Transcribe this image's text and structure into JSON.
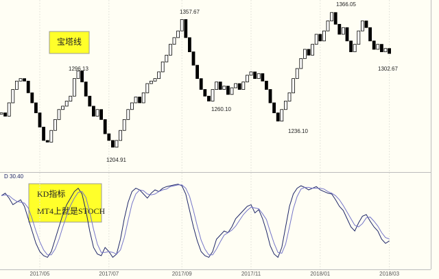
{
  "chart_data": [
    {
      "type": "tower",
      "callouts": [
        "宝塔线",
        "KD指标",
        "MT4上就是STOCH"
      ],
      "annotations": [
        "1296.13",
        "1357.67",
        "1204.91",
        "1260.10",
        "1236.10",
        "1366.05",
        "1302.67"
      ],
      "categories": [
        null,
        null,
        null,
        null,
        null,
        null,
        null,
        null,
        null,
        null,
        "2017/05",
        null,
        null,
        null,
        null,
        null,
        null,
        null,
        null,
        null,
        null,
        null,
        null,
        null,
        null,
        null,
        null,
        null,
        "2017/07",
        null,
        null,
        null,
        null,
        null,
        null,
        null,
        null,
        null,
        null,
        null,
        null,
        null,
        null,
        null,
        null,
        null,
        null,
        "2017/09",
        null,
        null,
        null,
        null,
        null,
        null,
        null,
        null,
        null,
        null,
        null,
        null,
        null,
        null,
        null,
        null,
        null,
        "2017/11",
        null,
        null,
        null,
        null,
        null,
        null,
        null,
        null,
        null,
        null,
        null,
        null,
        null,
        null,
        null,
        null,
        null,
        "2018/01",
        null,
        null,
        null,
        null,
        null,
        null,
        null,
        null,
        null,
        null,
        null,
        null,
        null,
        null,
        null,
        null,
        null,
        "2018/03"
      ],
      "values": [
        1246,
        1242,
        1258,
        1274,
        1284,
        1287,
        1284,
        1270,
        1258,
        1246,
        1229,
        1213,
        1211,
        1225,
        1238,
        1250,
        1254,
        1260,
        1266,
        1287,
        1296.13,
        1283,
        1266,
        1254,
        1242,
        1250,
        1238,
        1221,
        1213,
        1204.91,
        1213,
        1225,
        1238,
        1250,
        1258,
        1265,
        1258,
        1270,
        1281,
        1284,
        1287,
        1295,
        1307,
        1315,
        1328,
        1336,
        1344,
        1357.67,
        1336,
        1319,
        1303,
        1287,
        1274,
        1266,
        1260.1,
        1274,
        1283,
        1274,
        1278,
        1268,
        1276,
        1281,
        1274,
        1283,
        1291,
        1295,
        1287,
        1293,
        1284,
        1274,
        1258,
        1246,
        1236.1,
        1250,
        1260,
        1270,
        1287,
        1299,
        1311,
        1322,
        1315,
        1328,
        1340,
        1332,
        1344,
        1356,
        1366.05,
        1352,
        1340,
        1348,
        1332,
        1319,
        1328,
        1344,
        1356,
        1348,
        1332,
        1322,
        1328,
        1319,
        1323,
        1317
      ],
      "ylim": [
        1176,
        1381
      ],
      "up_color": "#ffffff",
      "down_color": "#000000"
    },
    {
      "type": "line",
      "header": "D 30.40",
      "ylim": [
        0,
        100
      ],
      "series": [
        {
          "color": "#1c2466",
          "values": [
            83,
            86,
            80,
            72,
            75,
            78,
            70,
            55,
            40,
            25,
            15,
            10,
            8,
            15,
            30,
            45,
            60,
            72,
            80,
            88,
            92,
            85,
            65,
            40,
            20,
            12,
            10,
            20,
            15,
            8,
            12,
            30,
            55,
            75,
            88,
            92,
            90,
            85,
            80,
            86,
            90,
            88,
            92,
            94,
            95,
            96,
            97,
            95,
            85,
            65,
            45,
            28,
            15,
            10,
            8,
            15,
            30,
            35,
            40,
            38,
            45,
            55,
            60,
            65,
            70,
            72,
            62,
            66,
            55,
            40,
            22,
            12,
            8,
            20,
            45,
            70,
            85,
            92,
            95,
            93,
            90,
            92,
            94,
            90,
            88,
            86,
            85,
            78,
            70,
            65,
            55,
            45,
            40,
            50,
            58,
            60,
            52,
            45,
            40,
            30,
            25,
            28
          ]
        },
        {
          "color": "#7474c8",
          "values": [
            83,
            84,
            83,
            79,
            76,
            75,
            74,
            68,
            55,
            40,
            27,
            17,
            11,
            11,
            18,
            30,
            45,
            59,
            71,
            80,
            87,
            88,
            81,
            63,
            42,
            24,
            14,
            14,
            15,
            14,
            12,
            17,
            32,
            53,
            73,
            85,
            90,
            89,
            85,
            84,
            85,
            88,
            90,
            91,
            94,
            95,
            96,
            96,
            92,
            82,
            65,
            46,
            29,
            18,
            11,
            11,
            18,
            27,
            35,
            38,
            41,
            46,
            53,
            60,
            65,
            69,
            68,
            67,
            61,
            54,
            39,
            25,
            14,
            13,
            24,
            45,
            67,
            82,
            91,
            93,
            93,
            92,
            92,
            92,
            91,
            88,
            86,
            83,
            78,
            71,
            63,
            55,
            47,
            45,
            49,
            56,
            57,
            52,
            46,
            38,
            32,
            30.4
          ]
        }
      ]
    }
  ]
}
